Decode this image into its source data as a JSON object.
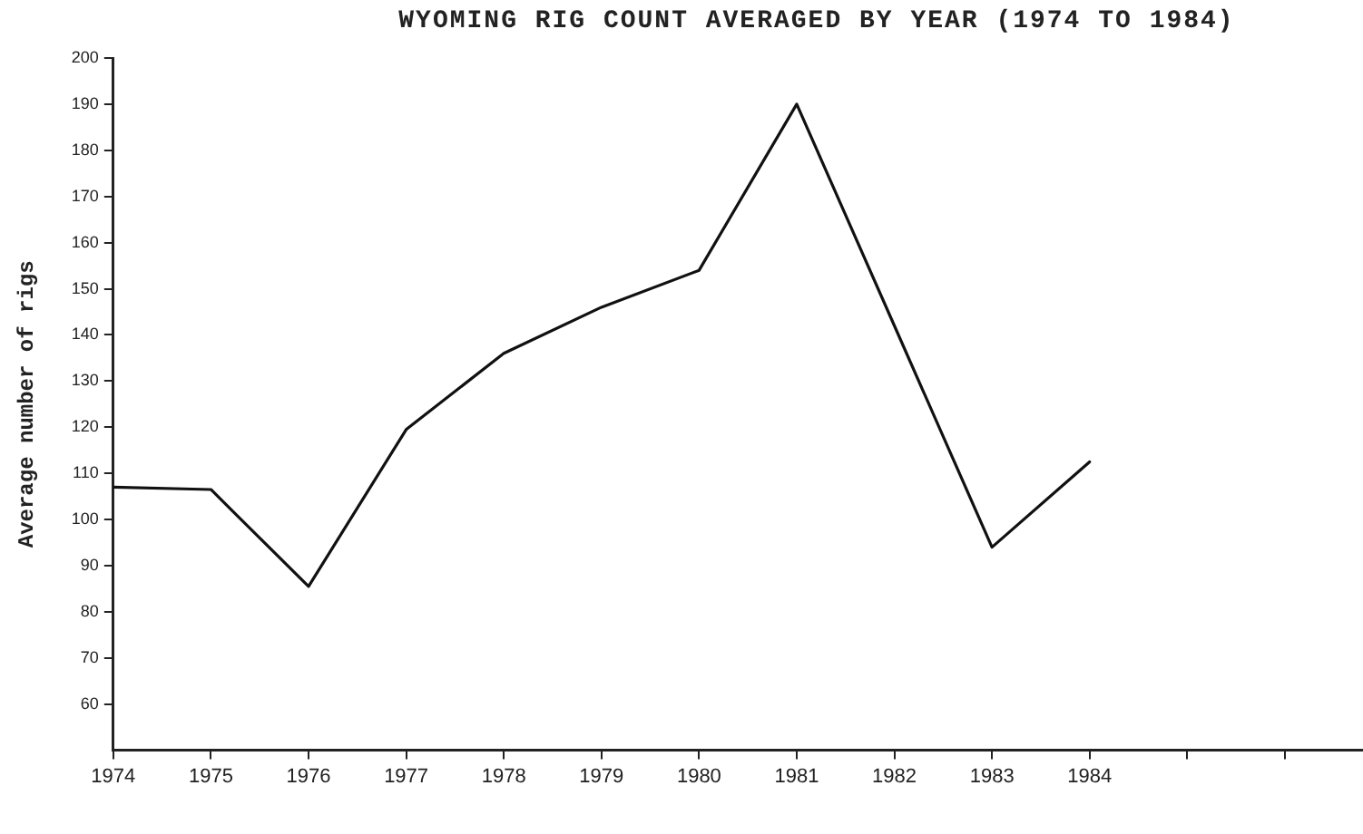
{
  "chart_data": {
    "type": "line",
    "title": "WYOMING RIG COUNT AVERAGED BY YEAR (1974 TO 1984)",
    "ylabel": "Average number of rigs",
    "x": [
      1974,
      1975,
      1976,
      1977,
      1978,
      1979,
      1980,
      1981,
      1982,
      1983,
      1984
    ],
    "series": [
      {
        "color": "#111111",
        "values": [
          107,
          106.5,
          85.5,
          119.5,
          136,
          146,
          154,
          190,
          142,
          94,
          112.5
        ]
      }
    ],
    "xlim": [
      1974,
      1986.8
    ],
    "xticks": [
      1974,
      1975,
      1976,
      1977,
      1978,
      1979,
      1980,
      1981,
      1982,
      1983,
      1984,
      {
        "value": 1985,
        "label": null
      },
      {
        "value": 1986,
        "label": null
      }
    ],
    "ylim": [
      50,
      200
    ],
    "yticks": [
      60,
      70,
      80,
      90,
      100,
      110,
      120,
      130,
      140,
      150,
      160,
      170,
      180,
      190,
      200
    ],
    "grid": false,
    "legend": false,
    "marker": "none",
    "line_style": "solid"
  }
}
